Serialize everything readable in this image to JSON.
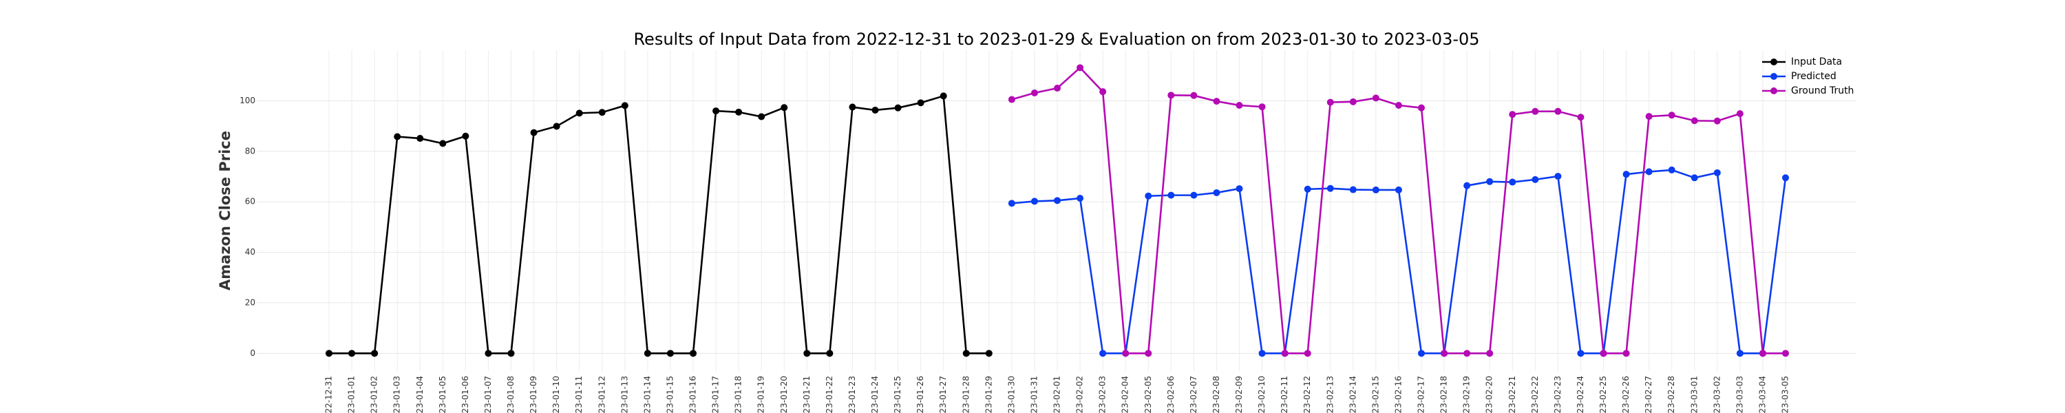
{
  "chart_data": {
    "type": "line",
    "title": "Results of Input Data from 2022-12-31 to 2023-01-29 & Evaluation on from 2023-01-30 to 2023-03-05",
    "ylabel": "Amazon Close Price",
    "categories": [
      "2022-12-31",
      "2023-01-01",
      "2023-01-02",
      "2023-01-03",
      "2023-01-04",
      "2023-01-05",
      "2023-01-06",
      "2023-01-07",
      "2023-01-08",
      "2023-01-09",
      "2023-01-10",
      "2023-01-11",
      "2023-01-12",
      "2023-01-13",
      "2023-01-14",
      "2023-01-15",
      "2023-01-16",
      "2023-01-17",
      "2023-01-18",
      "2023-01-19",
      "2023-01-20",
      "2023-01-21",
      "2023-01-22",
      "2023-01-23",
      "2023-01-24",
      "2023-01-25",
      "2023-01-26",
      "2023-01-27",
      "2023-01-28",
      "2023-01-29",
      "2023-01-30",
      "2023-01-31",
      "2023-02-01",
      "2023-02-02",
      "2023-02-03",
      "2023-02-04",
      "2023-02-05",
      "2023-02-06",
      "2023-02-07",
      "2023-02-08",
      "2023-02-09",
      "2023-02-10",
      "2023-02-11",
      "2023-02-12",
      "2023-02-13",
      "2023-02-14",
      "2023-02-15",
      "2023-02-16",
      "2023-02-17",
      "2023-02-18",
      "2023-02-19",
      "2023-02-20",
      "2023-02-21",
      "2023-02-22",
      "2023-02-23",
      "2023-02-24",
      "2023-02-25",
      "2023-02-26",
      "2023-02-27",
      "2023-02-28",
      "2023-03-01",
      "2023-03-02",
      "2023-03-03",
      "2023-03-04",
      "2023-03-05"
    ],
    "series": [
      {
        "name": "Input Data",
        "color": "#000000",
        "values": [
          0,
          0,
          0,
          85.8,
          85.1,
          83.1,
          86.0,
          0,
          0,
          87.4,
          89.9,
          95.1,
          95.4,
          98.1,
          0,
          0,
          0,
          96.0,
          95.5,
          93.7,
          97.3,
          0,
          0,
          97.5,
          96.3,
          97.2,
          99.2,
          101.9,
          0,
          0,
          null,
          null,
          null,
          null,
          null,
          null,
          null,
          null,
          null,
          null,
          null,
          null,
          null,
          null,
          null,
          null,
          null,
          null,
          null,
          null,
          null,
          null,
          null,
          null,
          null,
          null,
          null,
          null,
          null,
          null,
          null,
          null,
          null,
          null,
          null
        ]
      },
      {
        "name": "Predicted",
        "color": "#0a3cf0",
        "values": [
          null,
          null,
          null,
          null,
          null,
          null,
          null,
          null,
          null,
          null,
          null,
          null,
          null,
          null,
          null,
          null,
          null,
          null,
          null,
          null,
          null,
          null,
          null,
          null,
          null,
          null,
          null,
          null,
          null,
          null,
          59.4,
          60.2,
          60.5,
          61.4,
          0,
          0,
          62.3,
          62.6,
          62.6,
          63.6,
          65.2,
          0,
          0,
          65.0,
          65.3,
          64.8,
          64.7,
          64.7,
          0,
          0,
          66.4,
          68.0,
          67.8,
          68.8,
          70.1,
          0,
          0,
          70.9,
          71.9,
          72.6,
          69.5,
          71.5,
          0,
          0,
          69.5
        ]
      },
      {
        "name": "Ground Truth",
        "color": "#b40ab4",
        "values": [
          null,
          null,
          null,
          null,
          null,
          null,
          null,
          null,
          null,
          null,
          null,
          null,
          null,
          null,
          null,
          null,
          null,
          null,
          null,
          null,
          null,
          null,
          null,
          null,
          null,
          null,
          null,
          null,
          null,
          null,
          100.5,
          103.1,
          105.0,
          113.1,
          103.6,
          0,
          0,
          102.2,
          102.1,
          99.8,
          98.2,
          97.6,
          0,
          0,
          99.4,
          99.6,
          101.1,
          98.2,
          97.2,
          0,
          0,
          0,
          94.6,
          95.8,
          95.8,
          93.5,
          0,
          0,
          93.8,
          94.3,
          92.1,
          92.0,
          94.9,
          0,
          0
        ]
      }
    ],
    "ylim": [
      -7,
      120
    ],
    "yticks": [
      0,
      20,
      40,
      60,
      80,
      100
    ],
    "grid": true,
    "legend": "upper right"
  }
}
